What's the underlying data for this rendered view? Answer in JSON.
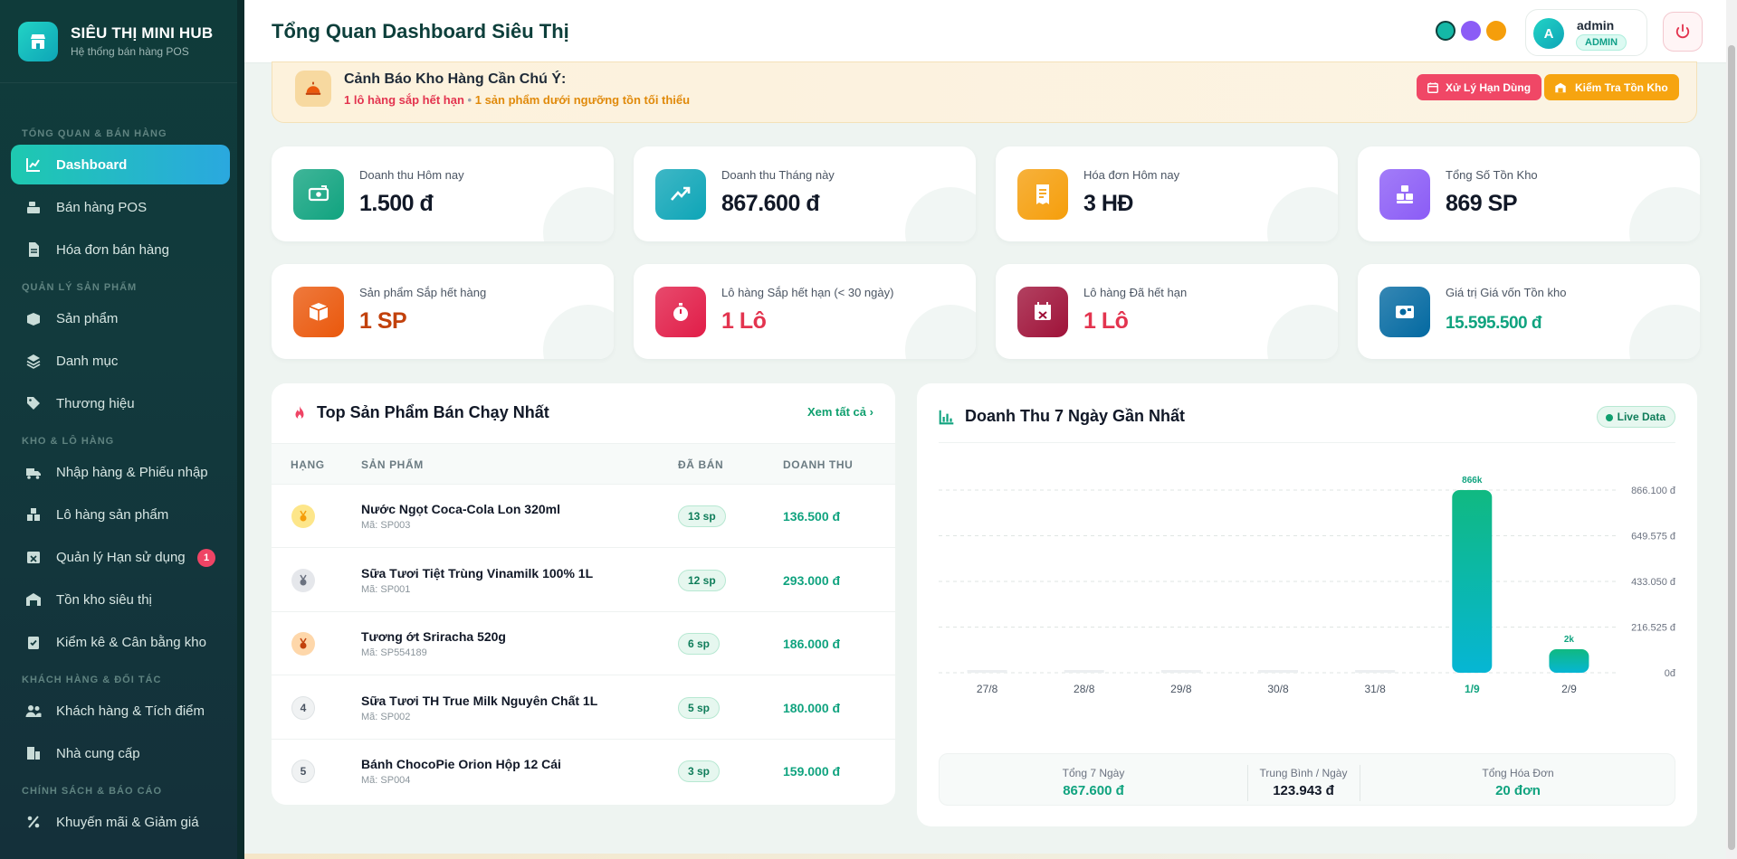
{
  "brand": {
    "title": "SIÊU THỊ MINI HUB",
    "subtitle": "Hệ thống bán hàng POS"
  },
  "sidebar": {
    "sections": [
      {
        "title": "TỔNG QUAN & BÁN HÀNG",
        "items": [
          {
            "label": "Dashboard",
            "icon": "chart-line-icon",
            "active": true
          },
          {
            "label": "Bán hàng POS",
            "icon": "cash-register-icon"
          },
          {
            "label": "Hóa đơn bán hàng",
            "icon": "file-invoice-icon"
          }
        ]
      },
      {
        "title": "QUẢN LÝ SẢN PHẨM",
        "items": [
          {
            "label": "Sản phẩm",
            "icon": "box-open-icon"
          },
          {
            "label": "Danh mục",
            "icon": "layers-icon"
          },
          {
            "label": "Thương hiệu",
            "icon": "tags-icon"
          }
        ]
      },
      {
        "title": "KHO & LÔ HÀNG",
        "items": [
          {
            "label": "Nhập hàng & Phiếu nhập",
            "icon": "truck-loading-icon"
          },
          {
            "label": "Lô hàng sản phẩm",
            "icon": "boxes-icon"
          },
          {
            "label": "Quản lý Hạn sử dụng",
            "icon": "calendar-x-icon",
            "badge": "1"
          },
          {
            "label": "Tồn kho siêu thị",
            "icon": "warehouse-icon"
          },
          {
            "label": "Kiểm kê & Cân bằng kho",
            "icon": "clipboard-check-icon"
          }
        ]
      },
      {
        "title": "KHÁCH HÀNG & ĐỐI TÁC",
        "items": [
          {
            "label": "Khách hàng & Tích điểm",
            "icon": "users-icon"
          },
          {
            "label": "Nhà cung cấp",
            "icon": "supplier-icon"
          }
        ]
      },
      {
        "title": "CHÍNH SÁCH & BÁO CÁO",
        "items": [
          {
            "label": "Khuyến mãi & Giảm giá",
            "icon": "percent-icon"
          }
        ]
      }
    ]
  },
  "header": {
    "title": "Tổng Quan Dashboard Siêu Thị",
    "user_initial": "A",
    "user_name": "admin",
    "role": "ADMIN"
  },
  "theme_colors": [
    "#14b8a6",
    "#8b5cf6",
    "#f59e0b"
  ],
  "alert": {
    "title": "Cảnh Báo Kho Hàng Cần Chú Ý:",
    "expiring_text": "1 lô hàng sắp hết hạn",
    "separator": "•",
    "low_stock_text": "1 sản phẩm dưới ngưỡng tồn tối thiểu",
    "btn_expiry": "Xử Lý Hạn Dùng",
    "btn_stock": "Kiểm Tra Tồn Kho"
  },
  "stats": [
    {
      "label": "Doanh thu Hôm nay",
      "value": "1.500 đ",
      "icon": "money-bill-icon",
      "color": "#10a37f"
    },
    {
      "label": "Doanh thu Tháng này",
      "value": "867.600 đ",
      "icon": "trend-up-icon",
      "color": "#0ea5b7"
    },
    {
      "label": "Hóa đơn Hôm nay",
      "value": "3 HĐ",
      "icon": "receipt-icon",
      "color": "#f59e0b"
    },
    {
      "label": "Tổng Số Tồn Kho",
      "value": "869 SP",
      "icon": "cubes-icon",
      "color": "#8b5cf6"
    },
    {
      "label": "Sản phẩm Sắp hết hàng",
      "value": "1 SP",
      "icon": "box-icon",
      "color": "#ea580c",
      "value_color": "#c2410c"
    },
    {
      "label": "Lô hàng Sắp hết hạn (< 30 ngày)",
      "value": "1 Lô",
      "icon": "stopwatch-icon",
      "color": "#e11d48",
      "value_color": "#e3344f"
    },
    {
      "label": "Lô hàng Đã hết hạn",
      "value": "1 Lô",
      "icon": "calendar-x-icon",
      "color": "#9f1239",
      "value_color": "#e3344f"
    },
    {
      "label": "Giá trị Giá vốn Tồn kho",
      "value": "15.595.500 đ",
      "icon": "money-check-icon",
      "color": "#0369a1",
      "value_color": "#10a37f"
    }
  ],
  "top_products": {
    "title": "Top Sản Phẩm Bán Chạy Nhất",
    "view_all": "Xem tất cả",
    "columns": [
      "HẠNG",
      "SẢN PHẨM",
      "ĐÃ BÁN",
      "DOANH THU"
    ],
    "rows": [
      {
        "rank": "1",
        "medal": "gold",
        "name": "Nước Ngọt Coca-Cola Lon 320ml",
        "code": "Mã: SP003",
        "sold": "13 sp",
        "revenue": "136.500 đ"
      },
      {
        "rank": "2",
        "medal": "silver",
        "name": "Sữa Tươi Tiệt Trùng Vinamilk 100% 1L",
        "code": "Mã: SP001",
        "sold": "12 sp",
        "revenue": "293.000 đ"
      },
      {
        "rank": "3",
        "medal": "bronze",
        "name": "Tương ớt Sriracha 520g",
        "code": "Mã: SP554189",
        "sold": "6 sp",
        "revenue": "186.000 đ"
      },
      {
        "rank": "4",
        "medal": "",
        "name": "Sữa Tươi TH True Milk Nguyên Chất 1L",
        "code": "Mã: SP002",
        "sold": "5 sp",
        "revenue": "180.000 đ"
      },
      {
        "rank": "5",
        "medal": "",
        "name": "Bánh ChocoPie Orion Hộp 12 Cái",
        "code": "Mã: SP004",
        "sold": "3 sp",
        "revenue": "159.000 đ"
      }
    ]
  },
  "chart_card": {
    "title": "Doanh Thu 7 Ngày Gần Nhất",
    "live_label": "Live Data",
    "summary": [
      {
        "label": "Tổng 7 Ngày",
        "value": "867.600 đ",
        "color": "#10a37f"
      },
      {
        "label": "Trung Bình / Ngày",
        "value": "123.943 đ",
        "color": "#111827"
      },
      {
        "label": "Tổng Hóa Đơn",
        "value": "20 đơn",
        "color": "#10a37f"
      }
    ]
  },
  "chart_data": {
    "type": "bar",
    "title": "Doanh Thu 7 Ngày Gần Nhất",
    "categories": [
      "27/8",
      "28/8",
      "29/8",
      "30/8",
      "31/8",
      "1/9",
      "2/9"
    ],
    "values": [
      0,
      0,
      0,
      0,
      0,
      866100,
      1500
    ],
    "data_labels": [
      "",
      "",
      "",
      "",
      "",
      "866k",
      "2k"
    ],
    "highlight_index": 5,
    "ylim": [
      0,
      866100
    ],
    "yticks": [
      0,
      216525,
      433050,
      649575,
      866100
    ],
    "ytick_labels": [
      "0đ",
      "216.525 đ",
      "433.050 đ",
      "649.575 đ",
      "866.100 đ"
    ],
    "grid": true,
    "colors": {
      "bar_top": "#10b981",
      "bar_bottom": "#06b6d4"
    }
  }
}
